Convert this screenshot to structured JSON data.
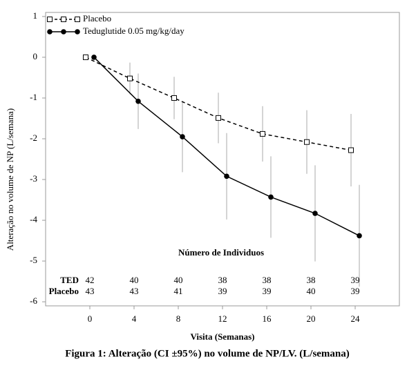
{
  "chart_data": {
    "type": "line",
    "x_label": "Visita (Semanas)",
    "y_label": "Alteração no volume de NP (L/semana)",
    "caption": "Figura 1: Alteração (CI ±95%) no volume de NP/LV. (L/semana)",
    "x": [
      0,
      4,
      8,
      12,
      16,
      20,
      24
    ],
    "series": [
      {
        "name": "Placebo",
        "color": "#000000",
        "dashed": true,
        "marker": "open-square",
        "values": [
          0,
          -0.52,
          -1.0,
          -1.49,
          -1.88,
          -2.08,
          -2.28
        ],
        "error": [
          0,
          0.39,
          0.52,
          0.62,
          0.68,
          0.78,
          0.89
        ]
      },
      {
        "name": "Teduglutide 0.05 mg/kg/day",
        "color": "#000000",
        "dashed": false,
        "marker": "filled-circle",
        "values": [
          0,
          -1.08,
          -1.95,
          -2.92,
          -3.43,
          -3.83,
          -4.38
        ],
        "error": [
          0,
          0.68,
          0.87,
          1.06,
          1.0,
          1.18,
          1.25
        ]
      }
    ],
    "xlim": [
      -4,
      28
    ],
    "xticks": [
      0,
      4,
      8,
      12,
      16,
      20,
      24
    ],
    "ylim": [
      -6.1,
      1.1
    ],
    "yticks": [
      1,
      0,
      -1,
      -2,
      -3,
      -4,
      -5,
      -6
    ],
    "table": {
      "title": "Número de Individuos",
      "rows": [
        {
          "label": "TED",
          "values": [
            42,
            40,
            40,
            38,
            38,
            38,
            39
          ]
        },
        {
          "label": "Placebo",
          "values": [
            43,
            43,
            41,
            39,
            39,
            40,
            39
          ]
        }
      ]
    }
  }
}
